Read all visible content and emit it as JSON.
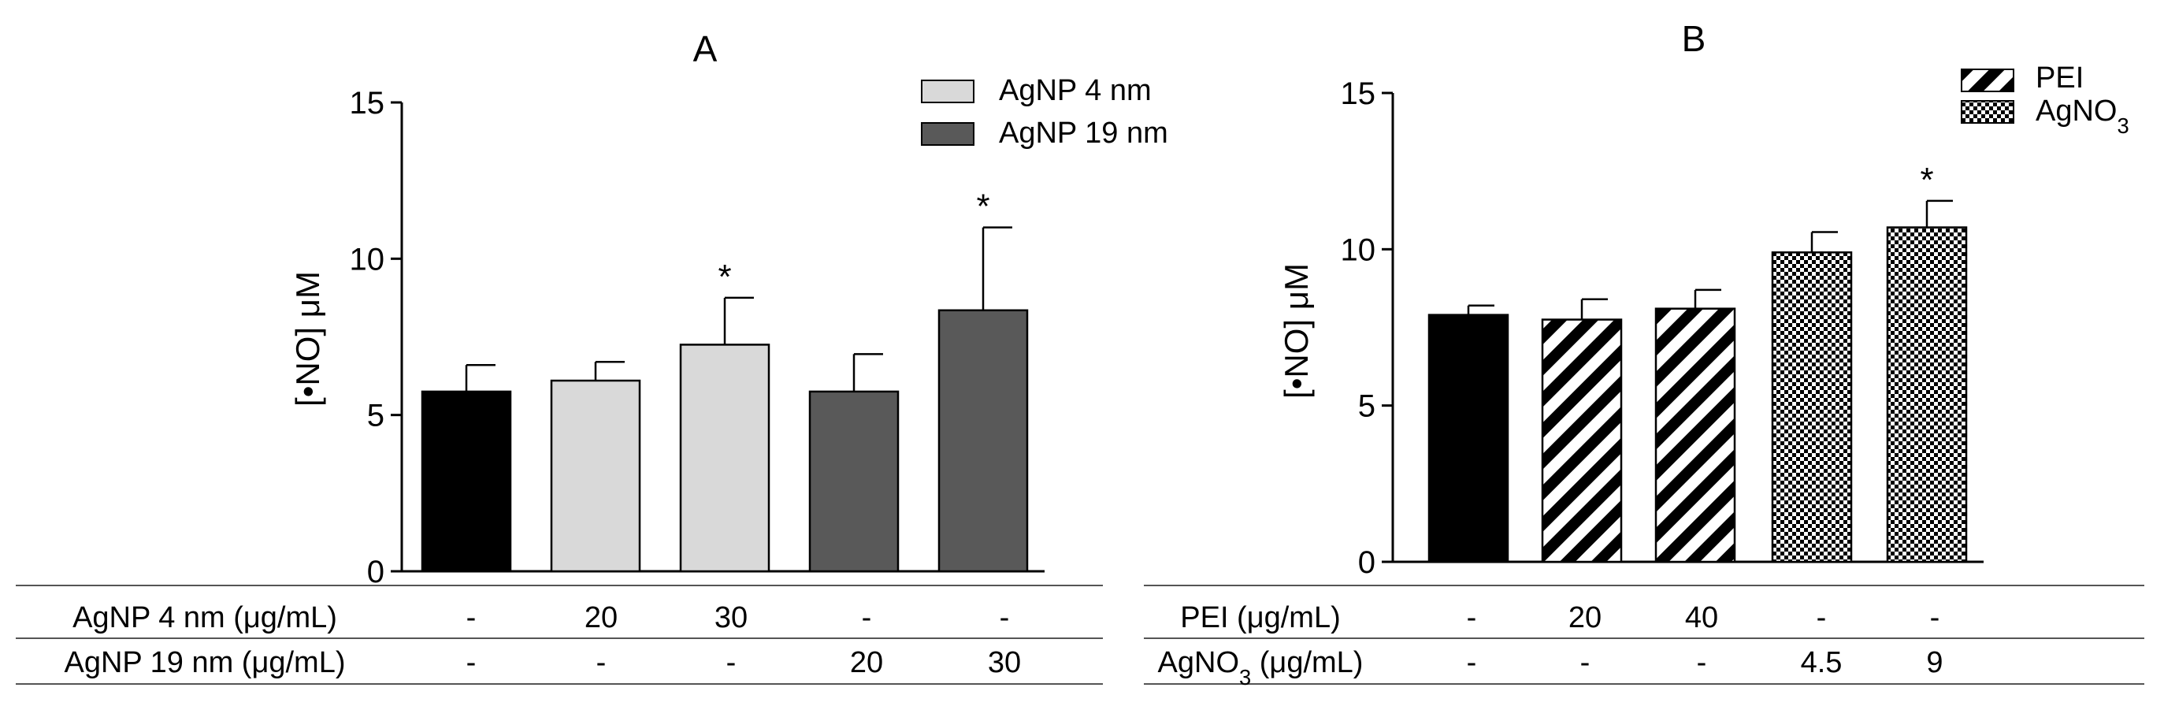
{
  "chart_data": [
    {
      "type": "bar",
      "title": "A",
      "ylabel": "[•NO] μM",
      "ylim": [
        0,
        15
      ],
      "yticks": [
        "0",
        "5",
        "10",
        "15"
      ],
      "bars": [
        {
          "value": 5.75,
          "error": 0.85,
          "fill": "black",
          "sig": ""
        },
        {
          "value": 6.1,
          "error": 0.6,
          "fill": "light",
          "sig": ""
        },
        {
          "value": 7.25,
          "error": 1.5,
          "fill": "light",
          "sig": "*"
        },
        {
          "value": 5.75,
          "error": 1.2,
          "fill": "dark",
          "sig": ""
        },
        {
          "value": 8.35,
          "error": 2.65,
          "fill": "dark",
          "sig": "*"
        }
      ],
      "legend": [
        {
          "label": "AgNP 4 nm",
          "fill": "light"
        },
        {
          "label": "AgNP 19 nm",
          "fill": "dark"
        }
      ],
      "table": [
        {
          "label": "AgNP 4 nm (μg/mL)",
          "values": [
            "-",
            "20",
            "30",
            "-",
            "-"
          ]
        },
        {
          "label": "AgNP 19 nm (μg/mL)",
          "values": [
            "-",
            "-",
            "-",
            "20",
            "30"
          ]
        }
      ]
    },
    {
      "type": "bar",
      "title": "B",
      "ylabel": "[•NO] μM",
      "ylim": [
        0,
        15
      ],
      "yticks": [
        "0",
        "5",
        "10",
        "15"
      ],
      "bars": [
        {
          "value": 7.9,
          "error": 0.3,
          "fill": "black",
          "sig": ""
        },
        {
          "value": 7.75,
          "error": 0.65,
          "fill": "hatch",
          "sig": ""
        },
        {
          "value": 8.1,
          "error": 0.6,
          "fill": "hatch",
          "sig": ""
        },
        {
          "value": 9.9,
          "error": 0.65,
          "fill": "check",
          "sig": ""
        },
        {
          "value": 10.7,
          "error": 0.85,
          "fill": "check",
          "sig": "*"
        }
      ],
      "legend": [
        {
          "label": "PEI",
          "fill": "hatch"
        },
        {
          "label": "AgNO3",
          "fill": "check"
        }
      ],
      "table": [
        {
          "label": "PEI (μg/mL)",
          "values": [
            "-",
            "20",
            "40",
            "-",
            "-"
          ]
        },
        {
          "label": "AgNO3 (μg/mL)",
          "values": [
            "-",
            "-",
            "-",
            "4.5",
            "9"
          ]
        }
      ]
    }
  ],
  "colors": {
    "black": "#000000",
    "light": "#d9d9d9",
    "dark": "#595959"
  }
}
